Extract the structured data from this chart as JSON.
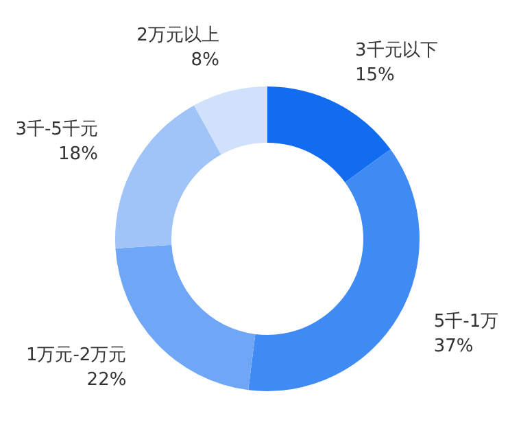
{
  "chart_data": {
    "type": "donut",
    "categories": [
      "3千元以下",
      "5千-1万",
      "1万元-2万元",
      "3千-5千元",
      "2万元以上"
    ],
    "values": [
      15,
      37,
      22,
      18,
      8
    ],
    "value_labels": [
      "15%",
      "37%",
      "22%",
      "18%",
      "8%"
    ],
    "colors": [
      "#116cf0",
      "#408bf3",
      "#70a6f6",
      "#a0c4f8",
      "#cfe1fb"
    ],
    "legend": false
  }
}
